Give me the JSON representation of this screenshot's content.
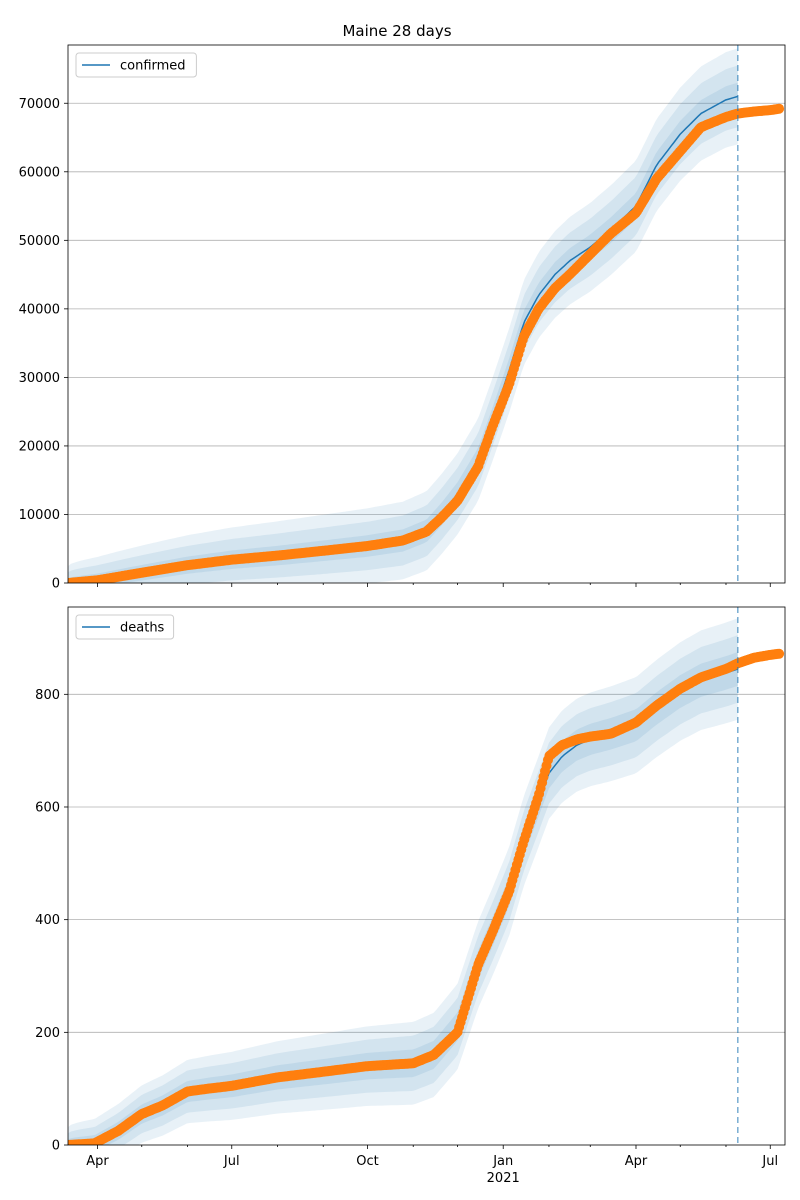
{
  "chart_data": [
    {
      "type": "line",
      "title": "Maine 28 days",
      "legend": {
        "label": "confirmed",
        "placement": "top-left"
      },
      "ylim": [
        0,
        78500
      ],
      "yticks": [
        0,
        10000,
        20000,
        30000,
        40000,
        50000,
        60000,
        70000
      ],
      "ytick_labels": [
        "0",
        "10000",
        "20000",
        "30000",
        "40000",
        "50000",
        "60000",
        "70000"
      ],
      "grid": "y",
      "forecast_line": {
        "x": "2021-06-09",
        "value": [
          0,
          71000
        ]
      },
      "observed": {
        "x": [
          "2020-03-12",
          "2020-04-01",
          "2020-05-01",
          "2020-06-01",
          "2020-07-01",
          "2020-08-01",
          "2020-09-01",
          "2020-10-01",
          "2020-10-25",
          "2020-11-10",
          "2020-11-20",
          "2020-12-01",
          "2020-12-15",
          "2020-12-25",
          "2021-01-05",
          "2021-01-15",
          "2021-01-25",
          "2021-02-05",
          "2021-02-15",
          "2021-03-01",
          "2021-03-15",
          "2021-04-01",
          "2021-04-15",
          "2021-05-01",
          "2021-05-15",
          "2021-06-01",
          "2021-06-09",
          "2021-06-20",
          "2021-07-01",
          "2021-07-07"
        ],
        "values": [
          0,
          400,
          1500,
          2600,
          3400,
          4000,
          4700,
          5400,
          6200,
          7500,
          9500,
          12000,
          17000,
          23000,
          29000,
          36000,
          40000,
          43000,
          45000,
          48000,
          51000,
          54000,
          59000,
          63000,
          66500,
          68000,
          68500,
          68800,
          69000,
          69200
        ]
      },
      "median": {
        "x": [
          "2020-03-12",
          "2020-04-01",
          "2020-05-01",
          "2020-06-01",
          "2020-07-01",
          "2020-08-01",
          "2020-09-01",
          "2020-10-01",
          "2020-10-25",
          "2020-11-10",
          "2020-11-20",
          "2020-12-01",
          "2020-12-15",
          "2020-12-25",
          "2021-01-05",
          "2021-01-15",
          "2021-01-25",
          "2021-02-05",
          "2021-02-15",
          "2021-03-01",
          "2021-03-15",
          "2021-04-01",
          "2021-04-15",
          "2021-05-01",
          "2021-05-15",
          "2021-06-01",
          "2021-06-09"
        ],
        "values": [
          0,
          400,
          1500,
          2600,
          3400,
          4000,
          4700,
          5400,
          6200,
          7600,
          10000,
          13000,
          18000,
          24000,
          31000,
          38000,
          42000,
          45000,
          47000,
          49000,
          51500,
          55000,
          61000,
          65500,
          68500,
          70500,
          71000
        ]
      },
      "band_scale": [
        2000,
        4500,
        7000
      ]
    },
    {
      "type": "line",
      "legend": {
        "label": "deaths",
        "placement": "top-left"
      },
      "ylim": [
        0,
        955
      ],
      "yticks": [
        0,
        200,
        400,
        600,
        800
      ],
      "ytick_labels": [
        "0",
        "200",
        "400",
        "600",
        "800"
      ],
      "grid": "y",
      "forecast_line": {
        "x": "2021-06-09",
        "value": [
          0,
          955
        ]
      },
      "xticks": [
        "2020-04-01",
        "2020-07-01",
        "2020-10-01",
        "2021-01-01",
        "2021-04-01",
        "2021-07-01"
      ],
      "xtick_labels": [
        "Apr",
        "Jul",
        "Oct",
        "Jan",
        "Apr",
        "Jul"
      ],
      "xtick_sublabel": {
        "at": "2021-01-01",
        "label": "2021"
      },
      "xlim": [
        "2020-03-12",
        "2021-07-11"
      ],
      "observed": {
        "x": [
          "2020-03-12",
          "2020-03-30",
          "2020-04-15",
          "2020-05-01",
          "2020-05-15",
          "2020-06-01",
          "2020-06-15",
          "2020-07-01",
          "2020-08-01",
          "2020-09-01",
          "2020-10-01",
          "2020-11-01",
          "2020-11-15",
          "2020-12-01",
          "2020-12-15",
          "2020-12-25",
          "2021-01-05",
          "2021-01-15",
          "2021-01-25",
          "2021-02-01",
          "2021-02-10",
          "2021-02-20",
          "2021-03-01",
          "2021-03-15",
          "2021-04-01",
          "2021-04-15",
          "2021-05-01",
          "2021-05-15",
          "2021-06-01",
          "2021-06-09",
          "2021-06-20",
          "2021-07-01",
          "2021-07-07"
        ],
        "values": [
          0,
          3,
          25,
          55,
          70,
          95,
          100,
          105,
          120,
          130,
          140,
          145,
          160,
          200,
          320,
          380,
          450,
          540,
          620,
          690,
          710,
          720,
          725,
          730,
          750,
          780,
          810,
          830,
          845,
          855,
          865,
          870,
          872
        ]
      },
      "median": {
        "x": [
          "2020-03-12",
          "2020-03-30",
          "2020-04-15",
          "2020-05-01",
          "2020-05-15",
          "2020-06-01",
          "2020-06-15",
          "2020-07-01",
          "2020-08-01",
          "2020-09-01",
          "2020-10-01",
          "2020-11-01",
          "2020-11-15",
          "2020-12-01",
          "2020-12-15",
          "2020-12-25",
          "2021-01-05",
          "2021-01-15",
          "2021-01-25",
          "2021-02-01",
          "2021-02-10",
          "2021-02-20",
          "2021-03-01",
          "2021-03-15",
          "2021-04-01",
          "2021-04-15",
          "2021-05-01",
          "2021-05-15",
          "2021-06-01",
          "2021-06-09"
        ],
        "values": [
          0,
          3,
          25,
          55,
          70,
          95,
          100,
          105,
          120,
          130,
          140,
          145,
          160,
          210,
          320,
          380,
          450,
          540,
          610,
          660,
          690,
          710,
          720,
          730,
          745,
          775,
          805,
          825,
          838,
          845
        ]
      },
      "band_scale": [
        30,
        60,
        90
      ]
    }
  ],
  "colors": {
    "median": "#1f77b4",
    "observed": "#ff7f0e",
    "band": "#1f77b4",
    "grid": "#b0b0b0",
    "forecast_line": "#1f77b4"
  }
}
